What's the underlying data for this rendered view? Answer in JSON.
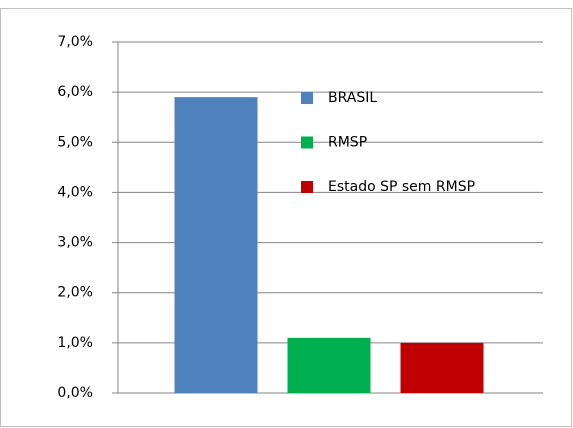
{
  "chart_data": {
    "type": "bar",
    "categories": [
      null
    ],
    "series": [
      {
        "name": "BRASIL",
        "color": "#4f81bd",
        "values": [
          5.9
        ]
      },
      {
        "name": "RMSP",
        "color": "#00b050",
        "values": [
          1.1
        ]
      },
      {
        "name": "Estado SP sem RMSP",
        "color": "#c00000",
        "values": [
          1.0
        ]
      }
    ],
    "ylim": [
      0,
      7
    ],
    "yticks": [
      {
        "value": 0,
        "label": "0,0%"
      },
      {
        "value": 1,
        "label": "1,0%"
      },
      {
        "value": 2,
        "label": "2,0%"
      },
      {
        "value": 3,
        "label": "3,0%"
      },
      {
        "value": 4,
        "label": "4,0%"
      },
      {
        "value": 5,
        "label": "5,0%"
      },
      {
        "value": 6,
        "label": "6,0%"
      },
      {
        "value": 7,
        "label": "7,0%"
      }
    ],
    "grid": true,
    "legend": "right"
  }
}
